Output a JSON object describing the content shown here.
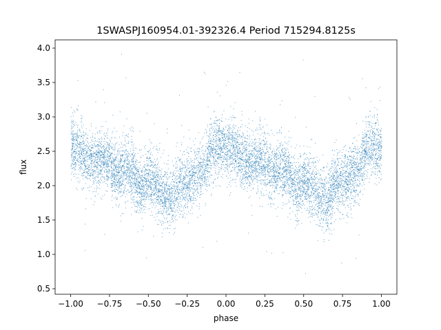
{
  "chart_data": {
    "type": "scatter",
    "title": "1SWASPJ160954.01-392326.4 Period 715294.8125s",
    "xlabel": "phase",
    "ylabel": "flux",
    "xlim": [
      -1.1,
      1.1
    ],
    "ylim": [
      0.42,
      4.12
    ],
    "x_ticks": [
      -1.0,
      -0.75,
      -0.5,
      -0.25,
      0.0,
      0.25,
      0.5,
      0.75,
      1.0
    ],
    "x_tick_labels": [
      "−1.00",
      "−0.75",
      "−0.50",
      "−0.25",
      "0.00",
      "0.25",
      "0.50",
      "0.75",
      "1.00"
    ],
    "y_ticks": [
      0.5,
      1.0,
      1.5,
      2.0,
      2.5,
      3.0,
      3.5,
      4.0
    ],
    "y_tick_labels": [
      "0.5",
      "1.0",
      "1.5",
      "2.0",
      "2.5",
      "3.0",
      "3.5",
      "4.0"
    ],
    "grid": false,
    "marker_color": "#1f77b4",
    "series": [
      {
        "profile": [
          [
            -1.0,
            2.55
          ],
          [
            -0.95,
            2.55
          ],
          [
            -0.9,
            2.4
          ],
          [
            -0.85,
            2.35
          ],
          [
            -0.8,
            2.4
          ],
          [
            -0.75,
            2.35
          ],
          [
            -0.7,
            2.15
          ],
          [
            -0.65,
            2.3
          ],
          [
            -0.6,
            2.2
          ],
          [
            -0.55,
            1.95
          ],
          [
            -0.5,
            2.1
          ],
          [
            -0.45,
            2.0
          ],
          [
            -0.4,
            1.85
          ],
          [
            -0.35,
            1.8
          ],
          [
            -0.3,
            2.05
          ],
          [
            -0.25,
            2.05
          ],
          [
            -0.2,
            2.15
          ],
          [
            -0.15,
            2.2
          ],
          [
            -0.1,
            2.55
          ],
          [
            -0.05,
            2.6
          ],
          [
            0.0,
            2.55
          ],
          [
            0.05,
            2.55
          ],
          [
            0.1,
            2.4
          ],
          [
            0.15,
            2.35
          ],
          [
            0.2,
            2.4
          ],
          [
            0.25,
            2.35
          ],
          [
            0.3,
            2.15
          ],
          [
            0.35,
            2.3
          ],
          [
            0.4,
            2.2
          ],
          [
            0.45,
            1.95
          ],
          [
            0.5,
            2.1
          ],
          [
            0.55,
            2.0
          ],
          [
            0.6,
            1.85
          ],
          [
            0.65,
            1.8
          ],
          [
            0.7,
            2.05
          ],
          [
            0.75,
            2.05
          ],
          [
            0.8,
            2.15
          ],
          [
            0.85,
            2.2
          ],
          [
            0.9,
            2.55
          ],
          [
            0.95,
            2.6
          ],
          [
            1.0,
            2.55
          ]
        ],
        "scatter_sd": 0.22,
        "n_points": 9000
      }
    ]
  }
}
